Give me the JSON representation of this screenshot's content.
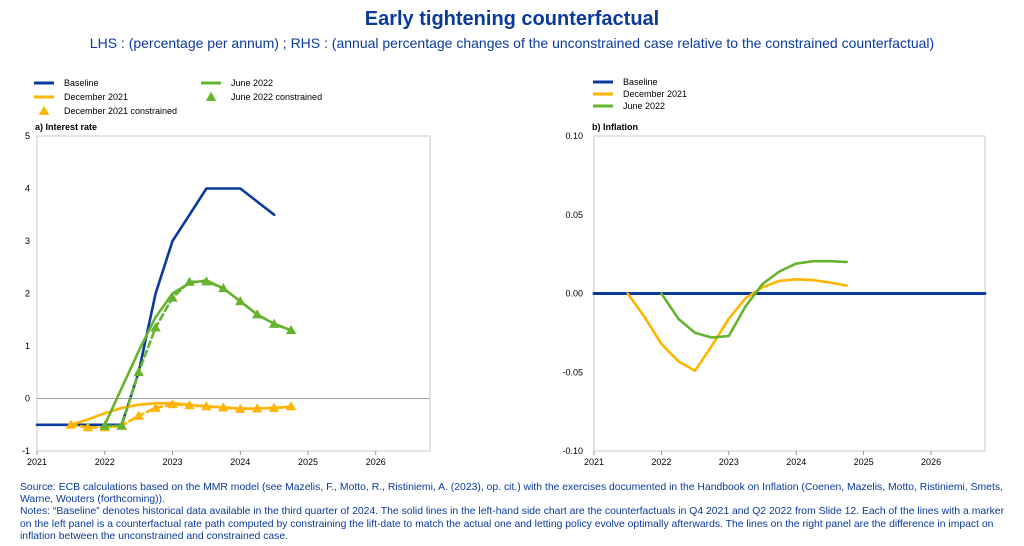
{
  "title": "Early tightening counterfactual",
  "subtitle": "LHS : (percentage per annum) ; RHS : (annual percentage changes of the unconstrained case relative to the constrained counterfactual)",
  "footer": {
    "source": "Source: ECB calculations based on the MMR model (see Mazelis, F., Motto, R., Ristiniemi, A. (2023), op. cit.) with the exercises documented in the Handbook on Inflation (Coenen, Mazelis, Motto, Ristiniemi, Smets, Warne, Wouters (forthcoming)).",
    "notes": "Notes: “Baseline” denotes historical data available in the third quarter of 2024. The solid lines in the left-hand side chart are the counterfactuals in Q4 2021 and Q2 2022 from Slide 12. Each of the lines with a marker on the left panel is a counterfactual rate path computed by constraining the lift-date to match the actual one and letting policy evolve optimally afterwards. The lines on the right panel are the difference in impact on inflation between the unconstrained and constrained case."
  },
  "colors": {
    "baseline": "#0a3a9c",
    "december": "#ffb400",
    "june": "#65b32e",
    "text": "#000000",
    "grid": "#d9d9d9"
  },
  "chart_data": [
    {
      "type": "line",
      "panel_title": "a) Interest rate",
      "x_ticks": [
        "2021",
        "2022",
        "2023",
        "2024",
        "2025",
        "2026"
      ],
      "y_ticks": [
        "-1",
        "0",
        "1",
        "2",
        "3",
        "4",
        "5"
      ],
      "ylim": [
        -1,
        5
      ],
      "xlim": [
        2021.0,
        2026.8
      ],
      "legend": [
        {
          "label": "Baseline",
          "series": "baseline",
          "kind": "line"
        },
        {
          "label": "December 2021",
          "series": "december",
          "kind": "line"
        },
        {
          "label": "December 2021 constrained",
          "series": "december",
          "kind": "marker"
        },
        {
          "label": "June 2022",
          "series": "june",
          "kind": "line"
        },
        {
          "label": "June 2022 constrained",
          "series": "june",
          "kind": "marker"
        }
      ],
      "series": [
        {
          "name": "Baseline",
          "color_key": "baseline",
          "style": "solid",
          "x": [
            2021.0,
            2021.5,
            2022.0,
            2022.25,
            2022.5,
            2022.75,
            2023.0,
            2023.25,
            2023.5,
            2023.75,
            2024.0,
            2024.25,
            2024.5
          ],
          "y": [
            -0.5,
            -0.5,
            -0.5,
            -0.5,
            0.5,
            2.0,
            3.0,
            3.5,
            4.0,
            4.0,
            4.0,
            3.75,
            3.5
          ]
        },
        {
          "name": "December 2021",
          "color_key": "december",
          "style": "solid",
          "x": [
            2021.5,
            2021.75,
            2022.0,
            2022.25,
            2022.5,
            2022.75,
            2023.0,
            2023.25,
            2023.5,
            2023.75,
            2024.0,
            2024.25,
            2024.5,
            2024.75
          ],
          "y": [
            -0.5,
            -0.4,
            -0.28,
            -0.18,
            -0.12,
            -0.09,
            -0.09,
            -0.12,
            -0.15,
            -0.17,
            -0.19,
            -0.19,
            -0.18,
            -0.16
          ]
        },
        {
          "name": "December 2021 constrained",
          "color_key": "december",
          "style": "dashed",
          "marker": "triangle",
          "x": [
            2021.5,
            2021.75,
            2022.0,
            2022.25,
            2022.5,
            2022.75,
            2023.0,
            2023.25,
            2023.5,
            2023.75,
            2024.0,
            2024.25,
            2024.5,
            2024.75
          ],
          "y": [
            -0.5,
            -0.55,
            -0.55,
            -0.52,
            -0.33,
            -0.18,
            -0.11,
            -0.13,
            -0.15,
            -0.17,
            -0.2,
            -0.19,
            -0.18,
            -0.15
          ]
        },
        {
          "name": "June 2022",
          "color_key": "june",
          "style": "solid",
          "x": [
            2022.0,
            2022.25,
            2022.5,
            2022.75,
            2023.0,
            2023.25,
            2023.5,
            2023.75,
            2024.0,
            2024.25,
            2024.5,
            2024.75
          ],
          "y": [
            -0.5,
            0.2,
            0.9,
            1.55,
            2.0,
            2.2,
            2.25,
            2.1,
            1.85,
            1.6,
            1.42,
            1.3
          ]
        },
        {
          "name": "June 2022 constrained",
          "color_key": "june",
          "style": "dashed",
          "marker": "triangle",
          "x": [
            2022.0,
            2022.25,
            2022.5,
            2022.75,
            2023.0,
            2023.25,
            2023.5,
            2023.75,
            2024.0,
            2024.25,
            2024.5,
            2024.75
          ],
          "y": [
            -0.52,
            -0.52,
            0.5,
            1.35,
            1.92,
            2.22,
            2.23,
            2.1,
            1.85,
            1.6,
            1.42,
            1.3
          ]
        }
      ]
    },
    {
      "type": "line",
      "panel_title": "b) Inflation",
      "x_ticks": [
        "2021",
        "2022",
        "2023",
        "2024",
        "2025",
        "2026"
      ],
      "y_ticks": [
        "-0.10",
        "-0.05",
        "0.00",
        "0.05",
        "0.10"
      ],
      "ylim": [
        -0.1,
        0.1
      ],
      "xlim": [
        2021.0,
        2026.8
      ],
      "legend": [
        {
          "label": "Baseline",
          "series": "baseline",
          "kind": "line"
        },
        {
          "label": "December 2021",
          "series": "december",
          "kind": "line"
        },
        {
          "label": "June 2022",
          "series": "june",
          "kind": "line"
        }
      ],
      "series": [
        {
          "name": "Baseline",
          "color_key": "baseline",
          "style": "solid",
          "x": [
            2021.0,
            2026.8
          ],
          "y": [
            0.0,
            0.0
          ]
        },
        {
          "name": "December 2021",
          "color_key": "december",
          "style": "solid",
          "x": [
            2021.5,
            2021.75,
            2022.0,
            2022.25,
            2022.5,
            2022.75,
            2023.0,
            2023.25,
            2023.5,
            2023.75,
            2024.0,
            2024.25,
            2024.5,
            2024.75
          ],
          "y": [
            0.0,
            -0.015,
            -0.032,
            -0.043,
            -0.049,
            -0.033,
            -0.016,
            -0.003,
            0.004,
            0.008,
            0.009,
            0.0085,
            0.007,
            0.005
          ]
        },
        {
          "name": "June 2022",
          "color_key": "june",
          "style": "solid",
          "x": [
            2022.0,
            2022.25,
            2022.5,
            2022.75,
            2023.0,
            2023.25,
            2023.5,
            2023.75,
            2024.0,
            2024.25,
            2024.5,
            2024.75
          ],
          "y": [
            0.0,
            -0.016,
            -0.025,
            -0.028,
            -0.027,
            -0.008,
            0.006,
            0.014,
            0.019,
            0.0205,
            0.0205,
            0.02
          ]
        }
      ]
    }
  ]
}
